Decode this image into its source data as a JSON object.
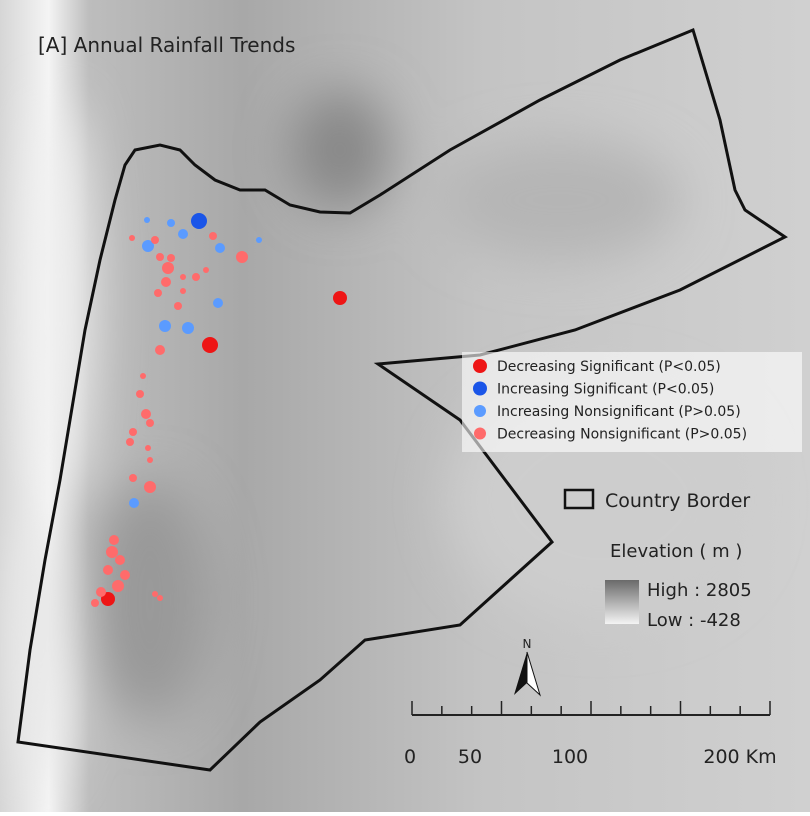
{
  "title": "[A] Annual Rainfall Trends",
  "legend": {
    "items": [
      {
        "label": "Decreasing Significant (P<0.05)",
        "color": "#ee1515"
      },
      {
        "label": "Increasing Significant (P<0.05)",
        "color": "#1a55e8"
      },
      {
        "label": "Increasing Nonsignificant (P>0.05)",
        "color": "#5b9bff"
      },
      {
        "label": "Decreasing Nonsignificant (P>0.05)",
        "color": "#ff6b6b"
      }
    ],
    "border_label": "Country Border",
    "elevation": {
      "title": "Elevation ( m )",
      "high": "High : 2805",
      "low": "Low : -428"
    }
  },
  "north": "N",
  "scale_bar": {
    "labels": [
      "0",
      "50",
      "100",
      "200 Km"
    ]
  }
}
